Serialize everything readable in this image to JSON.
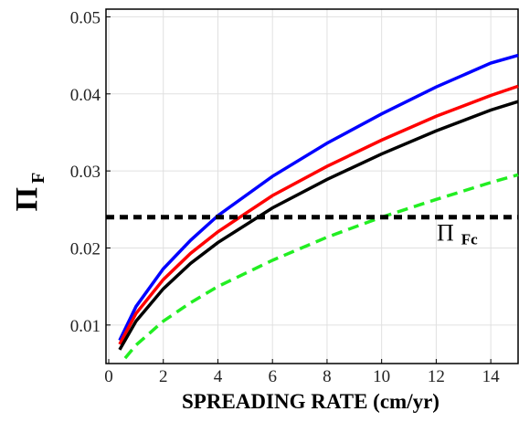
{
  "chart_data": {
    "type": "line",
    "x_label": "SPREADING RATE  (cm/yr)",
    "y_label": "Π",
    "y_label_sub": "F",
    "annotation": "Π",
    "annotation_sub": "Fc",
    "series": [
      {
        "color": "#0000ff",
        "dash": false,
        "x": [
          0.4,
          1,
          2,
          3,
          4,
          6,
          8,
          10,
          12,
          14,
          15
        ],
        "values": [
          0.008,
          0.0124,
          0.0173,
          0.021,
          0.0242,
          0.0293,
          0.0336,
          0.0374,
          0.0409,
          0.044,
          0.045
        ]
      },
      {
        "color": "#ff0000",
        "dash": false,
        "x": [
          0.4,
          1,
          2,
          3,
          4,
          6,
          8,
          10,
          12,
          14,
          15
        ],
        "values": [
          0.0075,
          0.0115,
          0.0159,
          0.0193,
          0.0221,
          0.0268,
          0.0306,
          0.034,
          0.0371,
          0.0398,
          0.041
        ]
      },
      {
        "color": "#000000",
        "dash": false,
        "x": [
          0.4,
          1,
          2,
          3,
          4,
          6,
          8,
          10,
          12,
          14,
          15
        ],
        "values": [
          0.0068,
          0.0105,
          0.0147,
          0.018,
          0.0207,
          0.0252,
          0.0289,
          0.0322,
          0.0352,
          0.0379,
          0.039
        ]
      },
      {
        "color": "#22ee22",
        "dash": true,
        "x": [
          0.6,
          1,
          2,
          3,
          4,
          6,
          8,
          10,
          12,
          14,
          15
        ],
        "values": [
          0.0057,
          0.0074,
          0.0105,
          0.0129,
          0.015,
          0.0184,
          0.0214,
          0.024,
          0.0263,
          0.0285,
          0.0295
        ]
      }
    ],
    "hlines": [
      {
        "value": 0.024,
        "color": "#000000",
        "dash": true
      }
    ],
    "xlim": [
      -0.1,
      15
    ],
    "xticks": [
      0,
      2,
      4,
      6,
      8,
      10,
      12,
      14
    ],
    "ylim": [
      0.005,
      0.051
    ],
    "yticks": [
      0.01,
      0.02,
      0.03,
      0.04,
      0.05
    ],
    "grid": true
  }
}
